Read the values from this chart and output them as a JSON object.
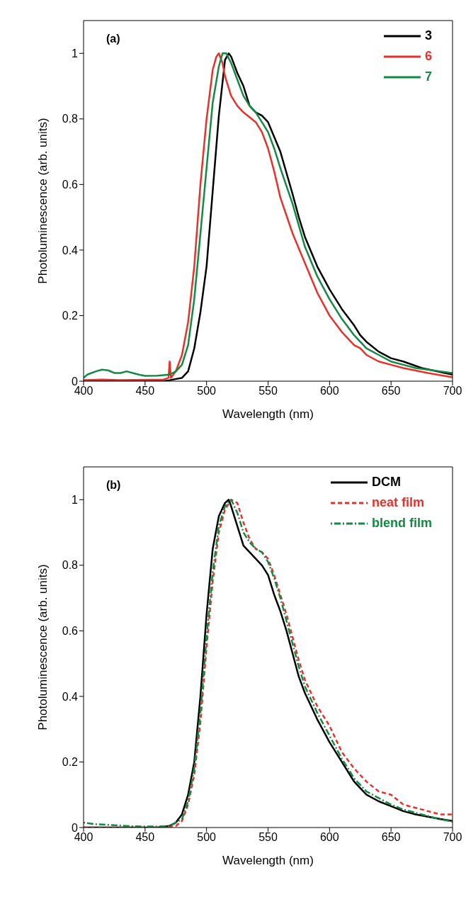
{
  "chart_data": [
    {
      "type": "line",
      "annotations": [
        "(a)"
      ],
      "xlabel": "Wavelength (nm)",
      "ylabel": "Photoluminescence (arb. units)",
      "xlim": [
        400,
        700
      ],
      "xticks": [
        400,
        450,
        500,
        550,
        600,
        650,
        700
      ],
      "ylim": [
        0,
        1.1
      ],
      "yticks": [
        0,
        0.2,
        0.4,
        0.6,
        0.8,
        1
      ],
      "grid": false,
      "legend": "top right",
      "marker": "none",
      "series": [
        {
          "name": "3",
          "color": "#000000",
          "line_style": "solid",
          "x": [
            400,
            465,
            470,
            480,
            485,
            490,
            495,
            500,
            505,
            510,
            515,
            518,
            520,
            525,
            530,
            535,
            540,
            545,
            550,
            560,
            570,
            575,
            580,
            590,
            600,
            610,
            620,
            625,
            630,
            640,
            650,
            660,
            675,
            700
          ],
          "values": [
            0,
            0,
            0.003,
            0.01,
            0.03,
            0.1,
            0.21,
            0.35,
            0.58,
            0.81,
            0.98,
            1.0,
            0.99,
            0.94,
            0.9,
            0.84,
            0.82,
            0.81,
            0.79,
            0.7,
            0.57,
            0.5,
            0.44,
            0.35,
            0.28,
            0.22,
            0.17,
            0.14,
            0.12,
            0.09,
            0.07,
            0.06,
            0.04,
            0.02
          ]
        },
        {
          "name": "6",
          "color": "#e8312a",
          "line_style": "solid",
          "x": [
            400,
            415,
            430,
            465,
            469,
            470,
            471,
            475,
            480,
            485,
            490,
            495,
            500,
            505,
            508,
            510,
            513,
            515,
            520,
            525,
            530,
            540,
            545,
            550,
            555,
            560,
            570,
            580,
            590,
            600,
            610,
            620,
            625,
            630,
            640,
            650,
            660,
            680,
            700
          ],
          "values": [
            0.003,
            0.005,
            0.003,
            0.005,
            0.01,
            0.06,
            0.01,
            0.03,
            0.08,
            0.18,
            0.35,
            0.6,
            0.8,
            0.95,
            0.99,
            1.0,
            0.97,
            0.93,
            0.87,
            0.84,
            0.82,
            0.79,
            0.76,
            0.71,
            0.64,
            0.56,
            0.45,
            0.36,
            0.27,
            0.2,
            0.15,
            0.11,
            0.1,
            0.08,
            0.06,
            0.05,
            0.04,
            0.025,
            0.012
          ]
        },
        {
          "name": "7",
          "color": "#138a43",
          "line_style": "solid",
          "x": [
            400,
            403,
            410,
            415,
            420,
            425,
            430,
            435,
            440,
            445,
            450,
            460,
            470,
            475,
            480,
            485,
            490,
            495,
            500,
            505,
            510,
            513,
            516,
            520,
            525,
            530,
            535,
            540,
            545,
            550,
            555,
            560,
            570,
            580,
            590,
            600,
            610,
            620,
            630,
            640,
            650,
            660,
            670,
            680,
            690,
            700
          ],
          "values": [
            0.01,
            0.02,
            0.03,
            0.035,
            0.033,
            0.025,
            0.025,
            0.03,
            0.025,
            0.02,
            0.016,
            0.017,
            0.02,
            0.03,
            0.05,
            0.11,
            0.25,
            0.45,
            0.65,
            0.85,
            0.96,
            1.0,
            1.0,
            0.97,
            0.92,
            0.87,
            0.84,
            0.82,
            0.79,
            0.76,
            0.71,
            0.65,
            0.54,
            0.41,
            0.32,
            0.25,
            0.19,
            0.14,
            0.1,
            0.08,
            0.06,
            0.05,
            0.04,
            0.035,
            0.03,
            0.025
          ]
        }
      ]
    },
    {
      "type": "line",
      "annotations": [
        "(b)"
      ],
      "xlabel": "Wavelength (nm)",
      "ylabel": "Photoluminescence (arb. units)",
      "xlim": [
        400,
        700
      ],
      "xticks": [
        400,
        450,
        500,
        550,
        600,
        650,
        700
      ],
      "ylim": [
        0,
        1.1
      ],
      "yticks": [
        0,
        0.2,
        0.4,
        0.6,
        0.8,
        1
      ],
      "grid": false,
      "legend": "top right",
      "marker": "none",
      "series": [
        {
          "name": "DCM",
          "color": "#000000",
          "line_style": "solid",
          "x": [
            400,
            460,
            470,
            475,
            480,
            485,
            490,
            495,
            500,
            505,
            510,
            515,
            518,
            520,
            525,
            530,
            535,
            540,
            545,
            550,
            555,
            560,
            565,
            570,
            575,
            580,
            590,
            600,
            610,
            620,
            630,
            640,
            650,
            660,
            670,
            680,
            690,
            700
          ],
          "values": [
            0,
            0,
            0.005,
            0.015,
            0.04,
            0.1,
            0.2,
            0.4,
            0.65,
            0.85,
            0.95,
            0.99,
            1.0,
            0.98,
            0.92,
            0.86,
            0.84,
            0.82,
            0.8,
            0.77,
            0.71,
            0.66,
            0.6,
            0.53,
            0.46,
            0.41,
            0.33,
            0.26,
            0.2,
            0.14,
            0.1,
            0.08,
            0.065,
            0.05,
            0.04,
            0.033,
            0.026,
            0.02
          ]
        },
        {
          "name": "neat film",
          "color": "#e8312a",
          "line_style": "dashed",
          "x": [
            400,
            465,
            475,
            480,
            485,
            490,
            495,
            500,
            505,
            510,
            515,
            520,
            525,
            530,
            535,
            540,
            545,
            550,
            555,
            560,
            565,
            570,
            575,
            580,
            590,
            600,
            610,
            620,
            630,
            640,
            650,
            660,
            670,
            680,
            690,
            700
          ],
          "values": [
            0,
            0,
            0.005,
            0.02,
            0.07,
            0.16,
            0.32,
            0.55,
            0.75,
            0.9,
            0.97,
            1.0,
            0.99,
            0.93,
            0.88,
            0.85,
            0.84,
            0.82,
            0.77,
            0.71,
            0.65,
            0.58,
            0.51,
            0.45,
            0.37,
            0.31,
            0.23,
            0.18,
            0.14,
            0.11,
            0.1,
            0.07,
            0.06,
            0.05,
            0.04,
            0.04
          ]
        },
        {
          "name": "blend film",
          "color": "#138a43",
          "line_style": "dotted",
          "x": [
            400,
            410,
            425,
            440,
            450,
            460,
            470,
            480,
            485,
            490,
            495,
            500,
            505,
            510,
            515,
            520,
            525,
            530,
            535,
            540,
            545,
            550,
            555,
            560,
            565,
            570,
            575,
            580,
            590,
            600,
            610,
            620,
            630,
            640,
            650,
            660,
            670,
            680,
            690,
            700
          ],
          "values": [
            0.015,
            0.01,
            0.007,
            0.004,
            0.003,
            0.003,
            0.005,
            0.025,
            0.08,
            0.18,
            0.35,
            0.58,
            0.78,
            0.92,
            0.98,
            1.0,
            0.96,
            0.9,
            0.87,
            0.85,
            0.84,
            0.81,
            0.76,
            0.7,
            0.63,
            0.56,
            0.49,
            0.43,
            0.35,
            0.28,
            0.21,
            0.15,
            0.11,
            0.09,
            0.07,
            0.055,
            0.045,
            0.035,
            0.025,
            0.018
          ]
        }
      ]
    }
  ]
}
